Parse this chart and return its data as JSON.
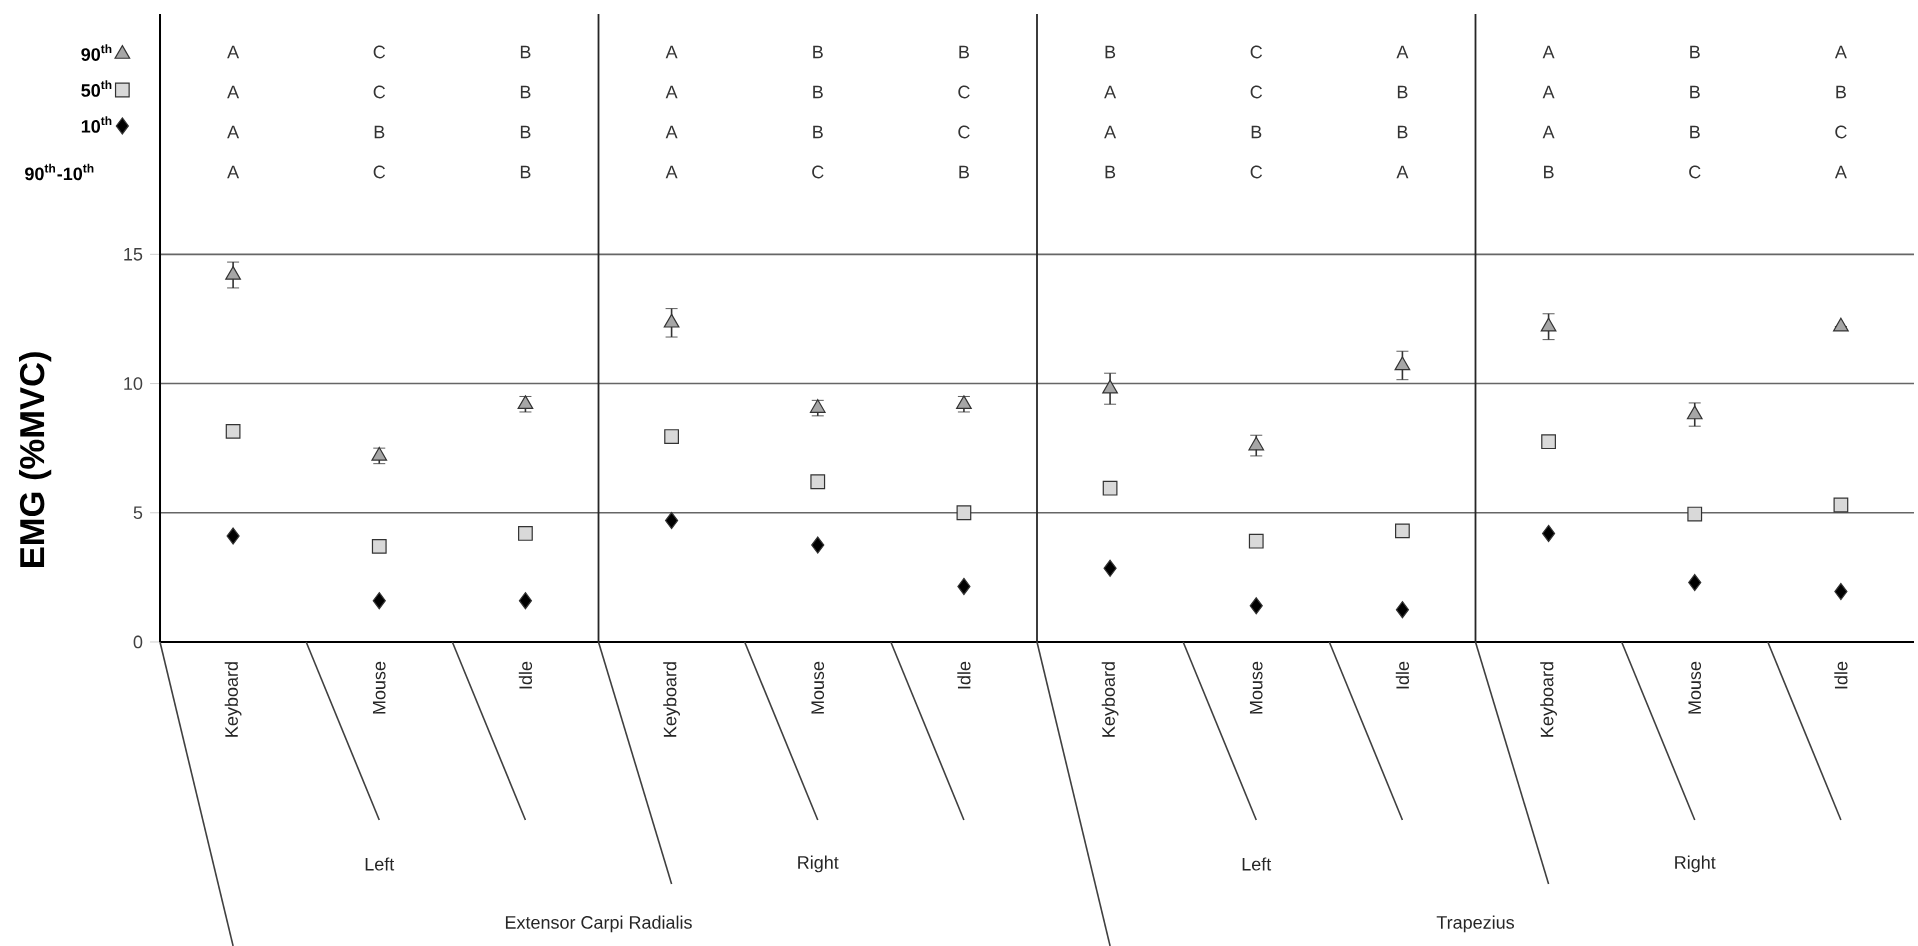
{
  "chart_data": {
    "type": "scatter",
    "ylabel": "EMG (%MVC)",
    "categories": [
      "Keyboard",
      "Mouse",
      "Idle",
      "Keyboard",
      "Mouse",
      "Idle",
      "Keyboard",
      "Mouse",
      "Idle",
      "Keyboard",
      "Mouse",
      "Idle"
    ],
    "series": [
      {
        "name": "90$^{th}$",
        "color": "#a6a6a6",
        "marker": "triangle",
        "values": [
          14.2,
          7.2,
          9.2,
          12.35,
          9.05,
          9.2,
          9.8,
          7.6,
          10.7,
          12.2,
          8.8,
          12.2
        ],
        "errors": [
          0.5,
          0.3,
          0.3,
          0.55,
          0.3,
          0.3,
          0.6,
          0.4,
          0.55,
          0.5,
          0.45,
          null
        ]
      },
      {
        "name": "50$^{th}$",
        "color": "#d9d9d9",
        "marker": "square",
        "values": [
          8.15,
          3.7,
          4.2,
          7.95,
          6.2,
          5.0,
          5.95,
          3.9,
          4.3,
          7.75,
          4.95,
          5.3
        ]
      },
      {
        "name": "10$^{th}$",
        "color": "#000000",
        "marker": "diamond",
        "values": [
          4.1,
          1.6,
          1.6,
          4.7,
          3.75,
          2.15,
          2.85,
          1.4,
          1.25,
          4.2,
          2.3,
          1.95
        ]
      }
    ],
    "ylim": [
      0,
      24.3
    ],
    "yticks": [
      0,
      5,
      10,
      15
    ],
    "grid": "y",
    "legend": "top left",
    "annotations": [
      "90$^{th}$-10$^{th}$",
      "A",
      "C",
      "B",
      "A",
      "B",
      "B",
      "B",
      "C",
      "A",
      "A",
      "B",
      "A",
      "A",
      "C",
      "B",
      "A",
      "B",
      "C",
      "A",
      "C",
      "B",
      "A",
      "B",
      "B",
      "A",
      "B",
      "B",
      "A",
      "B",
      "C",
      "A",
      "B",
      "B",
      "A",
      "B",
      "C",
      "A",
      "C",
      "B",
      "A",
      "C",
      "B",
      "B",
      "C",
      "A",
      "B",
      "C",
      "A",
      "Left",
      "Right",
      "Left",
      "Right",
      "Extensor Carpi Radialis",
      "Trapezius"
    ]
  }
}
